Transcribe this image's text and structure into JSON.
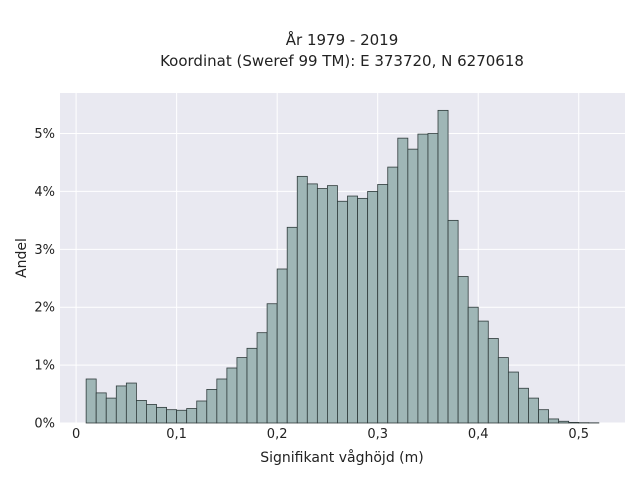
{
  "chart_data": {
    "type": "bar",
    "title_lines": [
      "År 1979 - 2019",
      "Koordinat (Sweref 99 TM): E 373720, N 6270618"
    ],
    "xlabel": "Signifikant våghöjd (m)",
    "ylabel": "Andel",
    "x_ticks": [
      {
        "value": 0,
        "label": "0"
      },
      {
        "value": 0.1,
        "label": "0,1"
      },
      {
        "value": 0.2,
        "label": "0,2"
      },
      {
        "value": 0.3,
        "label": "0,3"
      },
      {
        "value": 0.4,
        "label": "0,4"
      },
      {
        "value": 0.5,
        "label": "0,5"
      }
    ],
    "y_ticks": [
      {
        "value": 0,
        "label": "0%"
      },
      {
        "value": 1,
        "label": "1%"
      },
      {
        "value": 2,
        "label": "2%"
      },
      {
        "value": 3,
        "label": "3%"
      },
      {
        "value": 4,
        "label": "4%"
      },
      {
        "value": 5,
        "label": "5%"
      }
    ],
    "xlim": [
      -0.016,
      0.546
    ],
    "ylim": [
      0,
      5.7
    ],
    "bin_width": 0.01,
    "bin_starts": [
      0.01,
      0.02,
      0.03,
      0.04,
      0.05,
      0.06,
      0.07,
      0.08,
      0.09,
      0.1,
      0.11,
      0.12,
      0.13,
      0.14,
      0.15,
      0.16,
      0.17,
      0.18,
      0.19,
      0.2,
      0.21,
      0.22,
      0.23,
      0.24,
      0.25,
      0.26,
      0.27,
      0.28,
      0.29,
      0.3,
      0.31,
      0.32,
      0.33,
      0.34,
      0.35,
      0.36,
      0.37,
      0.38,
      0.39,
      0.4,
      0.41,
      0.42,
      0.43,
      0.44,
      0.45,
      0.46,
      0.47,
      0.48,
      0.49,
      0.5,
      0.51
    ],
    "values": [
      0.76,
      0.52,
      0.43,
      0.64,
      0.69,
      0.39,
      0.32,
      0.27,
      0.23,
      0.22,
      0.25,
      0.38,
      0.58,
      0.76,
      0.95,
      1.13,
      1.29,
      1.56,
      2.06,
      2.66,
      3.38,
      4.26,
      4.13,
      4.05,
      4.1,
      3.83,
      3.92,
      3.88,
      4.0,
      4.12,
      4.42,
      4.92,
      4.73,
      4.99,
      5.0,
      5.4,
      3.5,
      2.53,
      2.0,
      1.76,
      1.46,
      1.13,
      0.88,
      0.6,
      0.43,
      0.23,
      0.07,
      0.03,
      0.01,
      0.005,
      0.003
    ],
    "bar_color": "#9fb6b6",
    "edge_color": "#2f3b3b",
    "plot_background": "#e9e9f1",
    "grid_color": "#ffffff",
    "grid": true
  }
}
